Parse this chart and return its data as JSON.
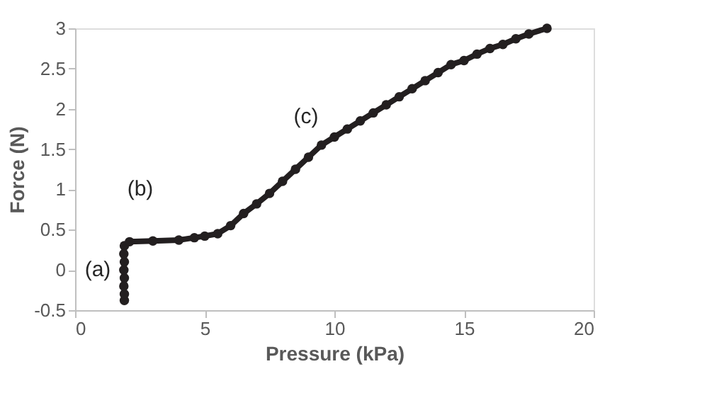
{
  "chart_data": {
    "type": "line",
    "xlabel": "Pressure (kPa)",
    "ylabel": "Force (N)",
    "xlim": [
      0,
      20
    ],
    "xticks": [
      0,
      5,
      10,
      15,
      20
    ],
    "ylim": [
      -0.5,
      3
    ],
    "yticks": [
      -0.5,
      0,
      0.5,
      1,
      1.5,
      2,
      2.5,
      3
    ],
    "grid": false,
    "marker": "circle",
    "line_style": "solid",
    "series": [
      {
        "color": "#231f20",
        "x": [
          1.9,
          1.9,
          1.88,
          1.9,
          1.88,
          1.9,
          1.88,
          1.9,
          2.1,
          3,
          4,
          4.6,
          5,
          5.5,
          6,
          6.5,
          7,
          7.5,
          8,
          8.5,
          9,
          9.5,
          10,
          10.5,
          11,
          11.5,
          12,
          12.5,
          13,
          13.5,
          14,
          14.5,
          15,
          15.5,
          16,
          16.5,
          17,
          17.5,
          18.2
        ],
        "values": [
          -0.38,
          -0.3,
          -0.2,
          -0.1,
          0,
          0.1,
          0.2,
          0.3,
          0.35,
          0.36,
          0.37,
          0.4,
          0.42,
          0.45,
          0.55,
          0.7,
          0.82,
          0.95,
          1.1,
          1.25,
          1.4,
          1.55,
          1.65,
          1.75,
          1.85,
          1.95,
          2.05,
          2.15,
          2.25,
          2.35,
          2.45,
          2.55,
          2.6,
          2.68,
          2.75,
          2.8,
          2.87,
          2.93,
          3
        ]
      }
    ],
    "annotations": [
      "(a)",
      "(b)",
      "(c)"
    ]
  }
}
